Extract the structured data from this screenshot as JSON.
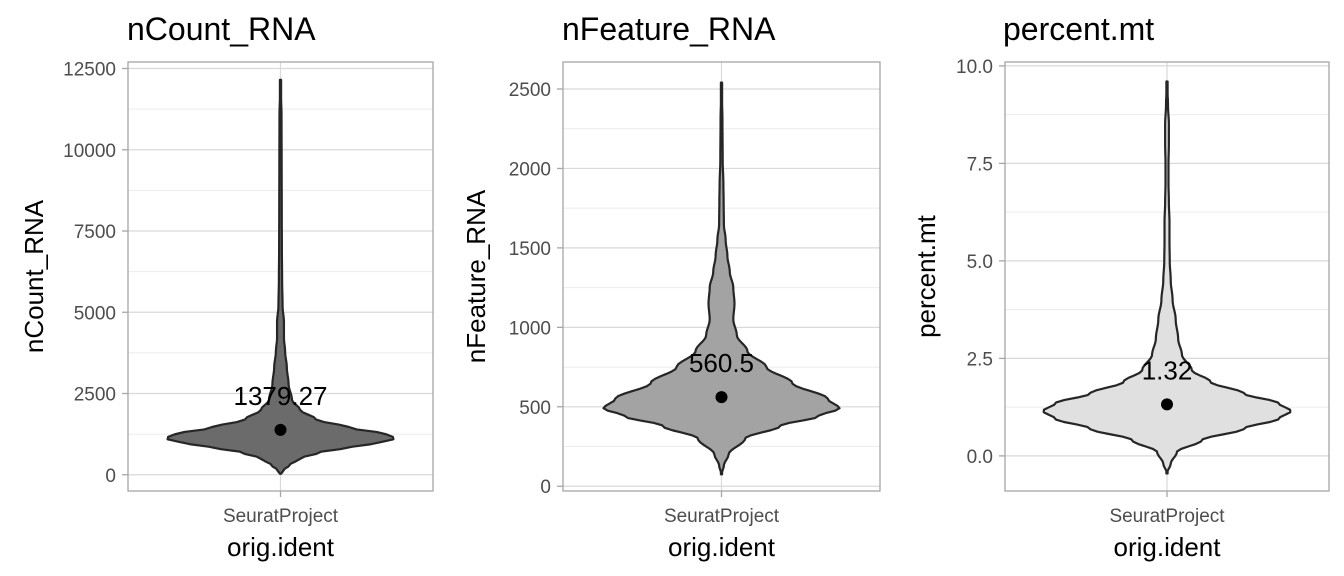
{
  "chart_data": [
    {
      "type": "violin",
      "title": "nCount_RNA",
      "xlabel": "orig.ident",
      "ylabel": "nCount_RNA",
      "categories": [
        "SeuratProject"
      ],
      "ylim": [
        -500,
        12700
      ],
      "yticks": [
        0,
        2500,
        5000,
        7500,
        10000,
        12500
      ],
      "ytick_labels": [
        "0",
        "2500",
        "5000",
        "7500",
        "10000",
        "12500"
      ],
      "fill": "#6b6b6b",
      "grid": true,
      "median": 1379.27,
      "median_label": "1379.27",
      "violin_max_width": 1,
      "density": [
        [
          30,
          0
        ],
        [
          150,
          0.03
        ],
        [
          300,
          0.08
        ],
        [
          500,
          0.17
        ],
        [
          700,
          0.35
        ],
        [
          850,
          0.62
        ],
        [
          1000,
          0.88
        ],
        [
          1120,
          1.0
        ],
        [
          1250,
          0.92
        ],
        [
          1450,
          0.6
        ],
        [
          1700,
          0.31
        ],
        [
          2000,
          0.17
        ],
        [
          2300,
          0.1
        ],
        [
          2800,
          0.07
        ],
        [
          3300,
          0.055
        ],
        [
          3800,
          0.04
        ],
        [
          4200,
          0.03
        ],
        [
          4700,
          0.03
        ],
        [
          5200,
          0.018
        ],
        [
          6000,
          0.014
        ],
        [
          7000,
          0.012
        ],
        [
          8000,
          0.011
        ],
        [
          9500,
          0.01
        ],
        [
          11000,
          0.009
        ],
        [
          12150,
          0
        ]
      ]
    },
    {
      "type": "violin",
      "title": "nFeature_RNA",
      "xlabel": "orig.ident",
      "ylabel": "nFeature_RNA",
      "categories": [
        "SeuratProject"
      ],
      "ylim": [
        -30,
        2670
      ],
      "yticks": [
        0,
        500,
        1000,
        1500,
        2000,
        2500
      ],
      "ytick_labels": [
        "0",
        "500",
        "1000",
        "1500",
        "2000",
        "2500"
      ],
      "fill": "#a3a3a3",
      "grid": true,
      "median": 560.5,
      "median_label": "560.5",
      "violin_max_width": 1,
      "density": [
        [
          75,
          0
        ],
        [
          130,
          0.02
        ],
        [
          200,
          0.06
        ],
        [
          300,
          0.2
        ],
        [
          380,
          0.5
        ],
        [
          440,
          0.82
        ],
        [
          490,
          1.0
        ],
        [
          550,
          0.9
        ],
        [
          650,
          0.6
        ],
        [
          750,
          0.38
        ],
        [
          850,
          0.22
        ],
        [
          950,
          0.13
        ],
        [
          1050,
          0.1
        ],
        [
          1150,
          0.11
        ],
        [
          1250,
          0.1
        ],
        [
          1350,
          0.07
        ],
        [
          1450,
          0.05
        ],
        [
          1550,
          0.035
        ],
        [
          1650,
          0.02
        ],
        [
          1800,
          0.018
        ],
        [
          1900,
          0.016
        ],
        [
          2050,
          0.01
        ],
        [
          2300,
          0.008
        ],
        [
          2540,
          0
        ]
      ]
    },
    {
      "type": "violin",
      "title": "percent.mt",
      "xlabel": "orig.ident",
      "ylabel": "percent.mt",
      "categories": [
        "SeuratProject"
      ],
      "ylim": [
        -0.9,
        10.1
      ],
      "yticks": [
        0.0,
        2.5,
        5.0,
        7.5,
        10.0
      ],
      "ytick_labels": [
        "0.0",
        "2.5",
        "5.0",
        "7.5",
        "10.0"
      ],
      "fill": "#e0e0e0",
      "grid": true,
      "median": 1.32,
      "median_label": "1.32",
      "violin_max_width": 1,
      "density": [
        [
          -0.45,
          0
        ],
        [
          -0.2,
          0.03
        ],
        [
          0.1,
          0.08
        ],
        [
          0.4,
          0.28
        ],
        [
          0.7,
          0.62
        ],
        [
          0.95,
          0.9
        ],
        [
          1.15,
          1.0
        ],
        [
          1.35,
          0.9
        ],
        [
          1.6,
          0.62
        ],
        [
          1.9,
          0.35
        ],
        [
          2.2,
          0.2
        ],
        [
          2.6,
          0.12
        ],
        [
          3.0,
          0.09
        ],
        [
          3.5,
          0.07
        ],
        [
          4.0,
          0.045
        ],
        [
          4.5,
          0.03
        ],
        [
          5.0,
          0.022
        ],
        [
          5.5,
          0.02
        ],
        [
          6.0,
          0.02
        ],
        [
          6.5,
          0.015
        ],
        [
          7.0,
          0.012
        ],
        [
          7.5,
          0.012
        ],
        [
          8.0,
          0.015
        ],
        [
          8.5,
          0.015
        ],
        [
          9.0,
          0.008
        ],
        [
          9.6,
          0
        ]
      ]
    }
  ]
}
